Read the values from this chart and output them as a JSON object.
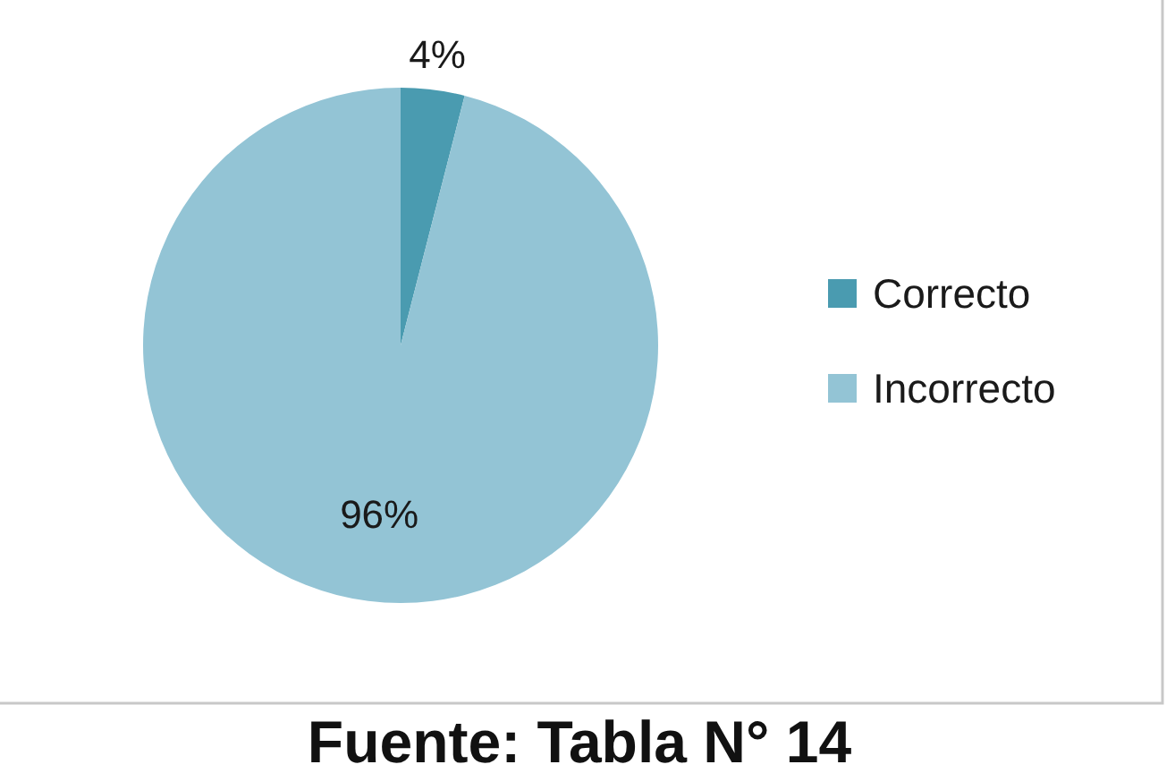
{
  "chart_data": {
    "type": "pie",
    "categories": [
      "Correcto",
      "Incorrecto"
    ],
    "values": [
      4,
      96
    ],
    "colors": [
      "#4a9bb0",
      "#93c4d5"
    ],
    "value_labels": [
      "4%",
      "96%"
    ],
    "legend": "right",
    "annotations": [
      "Fuente: Tabla N° 14"
    ]
  }
}
